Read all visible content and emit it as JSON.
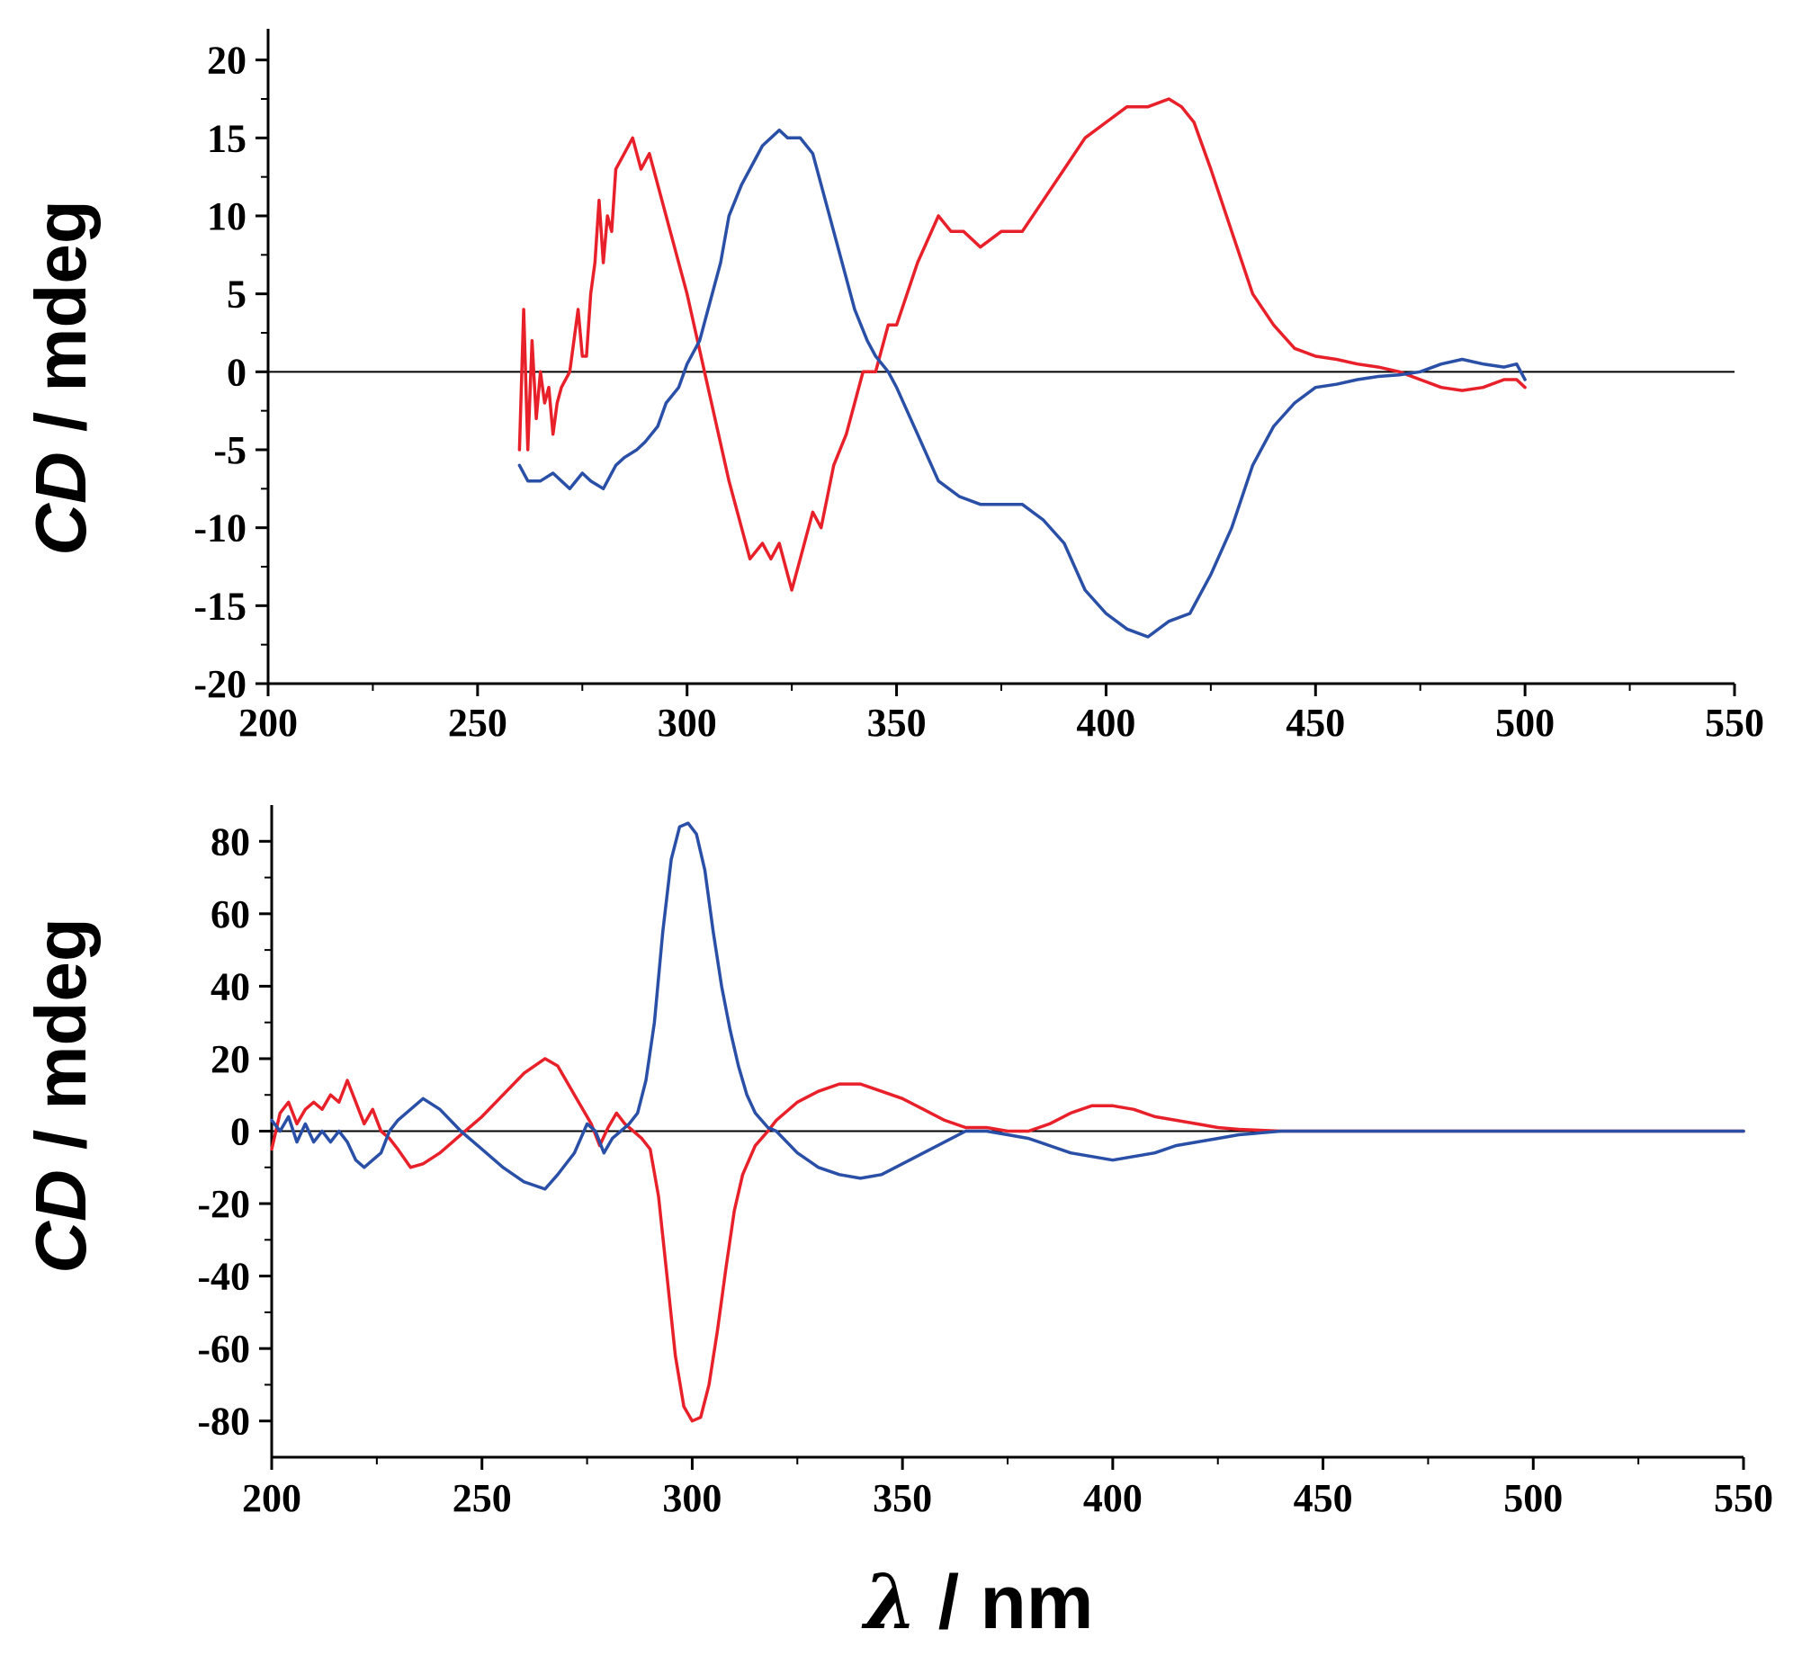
{
  "colors": {
    "red": "#e8202a",
    "blue": "#2a4fa6",
    "axis": "#000000",
    "zero_line": "#000000"
  },
  "axis_label_text": {
    "y_symbol": "CD",
    "y_unit": " / mdeg",
    "x_symbol": "λ",
    "x_unit": " / nm"
  },
  "chart_data": [
    {
      "type": "line",
      "title": "",
      "xlabel": "λ / nm",
      "ylabel": "CD / mdeg",
      "xlim": [
        200,
        550
      ],
      "ylim": [
        -20,
        22
      ],
      "xticks": [
        200,
        250,
        300,
        350,
        400,
        450,
        500,
        550
      ],
      "xtick_labels": [
        "200",
        "250",
        "300",
        "350",
        "400",
        "450",
        "500",
        "550"
      ],
      "yticks": [
        -20,
        -15,
        -10,
        -5,
        0,
        5,
        10,
        15,
        20
      ],
      "ytick_labels": [
        "-20",
        "-15",
        "-10",
        "-5",
        "0",
        "5",
        "10",
        "15",
        "20"
      ],
      "zero_line": true,
      "grid": false,
      "legend": "none",
      "series": [
        {
          "name": "red",
          "color": "#e8202a",
          "x": [
            260,
            261,
            262,
            263,
            264,
            265,
            266,
            267,
            268,
            269,
            270,
            272,
            274,
            275,
            276,
            277,
            278,
            279,
            280,
            281,
            282,
            283,
            285,
            287,
            289,
            291,
            293,
            295,
            300,
            305,
            310,
            315,
            318,
            320,
            322,
            325,
            327,
            330,
            332,
            335,
            338,
            340,
            342,
            345,
            348,
            350,
            355,
            360,
            363,
            366,
            370,
            375,
            380,
            385,
            390,
            395,
            400,
            405,
            410,
            415,
            418,
            421,
            425,
            430,
            435,
            440,
            445,
            450,
            455,
            460,
            465,
            470,
            475,
            480,
            485,
            490,
            495,
            498,
            500
          ],
          "values": [
            -5,
            4,
            -5,
            2,
            -3,
            0,
            -2,
            -1,
            -4,
            -2,
            -1,
            0,
            4,
            1,
            1,
            5,
            7,
            11,
            7,
            10,
            9,
            13,
            14,
            15,
            13,
            14,
            12,
            10,
            5,
            -1,
            -7,
            -12,
            -11,
            -12,
            -11,
            -14,
            -12,
            -9,
            -10,
            -6,
            -4,
            -2,
            0,
            0,
            3,
            3,
            7,
            10,
            9,
            9,
            8,
            9,
            9,
            11,
            13,
            15,
            16,
            17,
            17,
            17.5,
            17,
            16,
            13,
            9,
            5,
            3,
            1.5,
            1,
            0.8,
            0.5,
            0.3,
            0,
            -0.5,
            -1,
            -1.2,
            -1,
            -0.5,
            -0.5,
            -1
          ]
        },
        {
          "name": "blue",
          "color": "#2a4fa6",
          "x": [
            260,
            262,
            265,
            268,
            270,
            272,
            275,
            277,
            280,
            283,
            285,
            288,
            290,
            293,
            295,
            298,
            300,
            303,
            305,
            308,
            310,
            313,
            315,
            318,
            320,
            322,
            324,
            327,
            330,
            333,
            335,
            338,
            340,
            343,
            345,
            348,
            350,
            355,
            360,
            365,
            370,
            375,
            380,
            385,
            390,
            395,
            400,
            405,
            410,
            415,
            420,
            425,
            430,
            435,
            440,
            445,
            450,
            455,
            460,
            465,
            470,
            475,
            480,
            485,
            490,
            495,
            498,
            500
          ],
          "values": [
            -6,
            -7,
            -7,
            -6.5,
            -7,
            -7.5,
            -6.5,
            -7,
            -7.5,
            -6,
            -5.5,
            -5,
            -4.5,
            -3.5,
            -2,
            -1,
            0.5,
            2,
            4,
            7,
            10,
            12,
            13,
            14.5,
            15,
            15.5,
            15,
            15,
            14,
            11,
            9,
            6,
            4,
            2,
            1,
            0,
            -1,
            -4,
            -7,
            -8,
            -8.5,
            -8.5,
            -8.5,
            -9.5,
            -11,
            -14,
            -15.5,
            -16.5,
            -17,
            -16,
            -15.5,
            -13,
            -10,
            -6,
            -3.5,
            -2,
            -1,
            -0.8,
            -0.5,
            -0.3,
            -0.2,
            0,
            0.5,
            0.8,
            0.5,
            0.3,
            0.5,
            -0.5
          ]
        }
      ]
    },
    {
      "type": "line",
      "title": "",
      "xlabel": "λ / nm",
      "ylabel": "CD / mdeg",
      "xlim": [
        200,
        550
      ],
      "ylim": [
        -90,
        90
      ],
      "xticks": [
        200,
        250,
        300,
        350,
        400,
        450,
        500,
        550
      ],
      "xtick_labels": [
        "200",
        "250",
        "300",
        "350",
        "400",
        "450",
        "500",
        "550"
      ],
      "yticks": [
        -80,
        -60,
        -40,
        -20,
        0,
        20,
        40,
        60,
        80
      ],
      "ytick_labels": [
        "-80",
        "-60",
        "-40",
        "-20",
        "0",
        "20",
        "40",
        "60",
        "80"
      ],
      "zero_line": true,
      "grid": false,
      "legend": "none",
      "series": [
        {
          "name": "red",
          "color": "#e8202a",
          "x": [
            200,
            202,
            204,
            206,
            208,
            210,
            212,
            214,
            216,
            218,
            220,
            222,
            224,
            226,
            228,
            230,
            233,
            236,
            240,
            245,
            250,
            255,
            260,
            265,
            268,
            272,
            276,
            278,
            280,
            282,
            284,
            286,
            288,
            290,
            292,
            294,
            296,
            298,
            300,
            302,
            304,
            306,
            308,
            310,
            312,
            315,
            318,
            320,
            325,
            330,
            335,
            340,
            345,
            350,
            355,
            360,
            365,
            370,
            375,
            380,
            385,
            390,
            395,
            400,
            405,
            410,
            415,
            420,
            425,
            430,
            440,
            450,
            460,
            480,
            500,
            520,
            550
          ],
          "values": [
            -5,
            5,
            8,
            2,
            6,
            8,
            6,
            10,
            8,
            14,
            8,
            2,
            6,
            0,
            -2,
            -5,
            -10,
            -9,
            -6,
            -1,
            4,
            10,
            16,
            20,
            18,
            10,
            2,
            -4,
            1,
            5,
            2,
            0,
            -2,
            -5,
            -18,
            -40,
            -62,
            -76,
            -80,
            -79,
            -70,
            -55,
            -38,
            -22,
            -12,
            -4,
            0,
            3,
            8,
            11,
            13,
            13,
            11,
            9,
            6,
            3,
            1,
            1,
            0,
            0,
            2,
            5,
            7,
            7,
            6,
            4,
            3,
            2,
            1,
            0.5,
            0,
            0,
            0,
            0,
            0,
            0,
            0
          ]
        },
        {
          "name": "blue",
          "color": "#2a4fa6",
          "x": [
            200,
            202,
            204,
            206,
            208,
            210,
            212,
            214,
            216,
            218,
            220,
            222,
            224,
            226,
            228,
            230,
            233,
            236,
            240,
            245,
            250,
            255,
            260,
            265,
            268,
            272,
            275,
            277,
            279,
            281,
            283,
            285,
            287,
            289,
            291,
            293,
            295,
            297,
            299,
            301,
            303,
            305,
            307,
            309,
            311,
            313,
            315,
            318,
            320,
            325,
            330,
            335,
            340,
            345,
            350,
            355,
            360,
            365,
            370,
            375,
            380,
            385,
            390,
            395,
            400,
            405,
            410,
            415,
            420,
            425,
            430,
            440,
            450,
            460,
            480,
            500,
            520,
            550
          ],
          "values": [
            3,
            0,
            4,
            -3,
            2,
            -3,
            0,
            -3,
            0,
            -3,
            -8,
            -10,
            -8,
            -6,
            0,
            3,
            6,
            9,
            6,
            0,
            -5,
            -10,
            -14,
            -16,
            -12,
            -6,
            2,
            0,
            -6,
            -2,
            0,
            2,
            5,
            14,
            30,
            55,
            75,
            84,
            85,
            82,
            72,
            55,
            40,
            28,
            18,
            10,
            5,
            1,
            0,
            -6,
            -10,
            -12,
            -13,
            -12,
            -9,
            -6,
            -3,
            0,
            0,
            -1,
            -2,
            -4,
            -6,
            -7,
            -8,
            -7,
            -6,
            -4,
            -3,
            -2,
            -1,
            0,
            0,
            0,
            0,
            0,
            0,
            0
          ]
        }
      ]
    }
  ]
}
